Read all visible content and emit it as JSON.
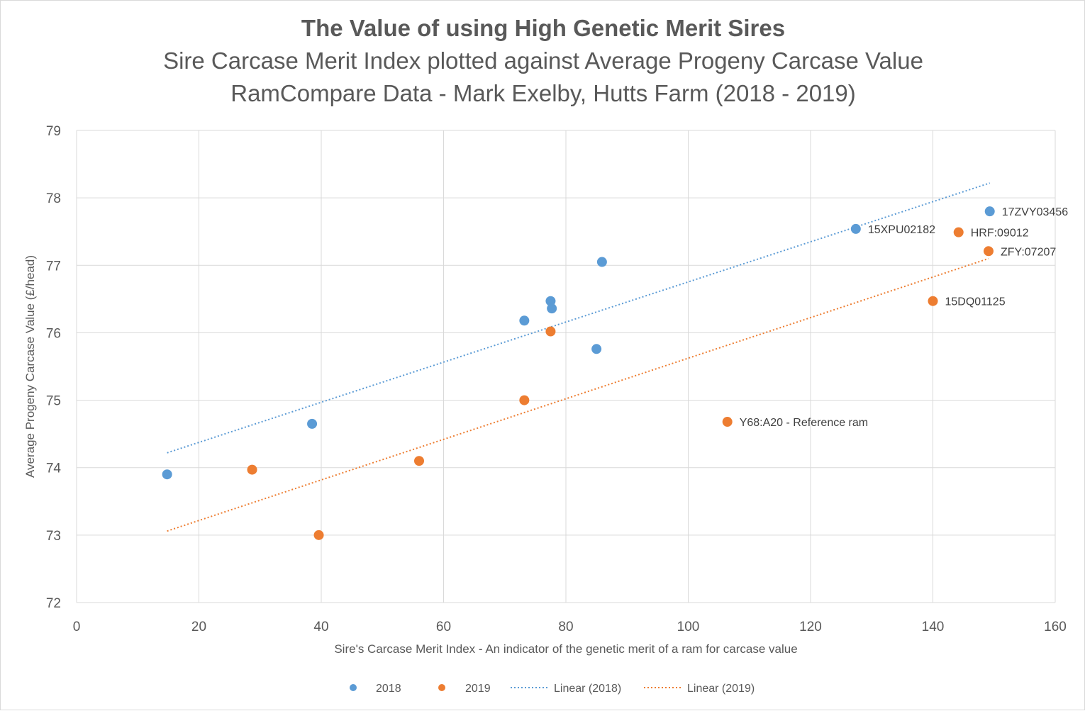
{
  "colors": {
    "s2018": "#5b9bd5",
    "s2019": "#ed7d31",
    "grid": "#d9d9d9",
    "text": "#595959"
  },
  "chart_data": {
    "type": "scatter",
    "title": "The Value of using High Genetic Merit Sires",
    "subtitle": [
      "Sire Carcase Merit Index plotted against Average Progeny Carcase Value",
      "RamCompare Data - Mark Exelby, Hutts Farm (2018 - 2019)"
    ],
    "xlabel": "Sire's Carcase Merit Index - An indicator of the genetic merit of a ram for carcase value",
    "ylabel": "Average Progeny Carcase Value (£/head)",
    "xlim": [
      0,
      160
    ],
    "ylim": [
      72,
      79
    ],
    "xticks": [
      0,
      20,
      40,
      60,
      80,
      100,
      120,
      140,
      160
    ],
    "yticks": [
      72,
      73,
      74,
      75,
      76,
      77,
      78,
      79
    ],
    "grid": true,
    "legend_position": "bottom",
    "series": [
      {
        "name": "2018",
        "color": "#5b9bd5",
        "points": [
          {
            "x": 14.8,
            "y": 73.9,
            "label": ""
          },
          {
            "x": 38.5,
            "y": 74.65,
            "label": ""
          },
          {
            "x": 73.2,
            "y": 76.18,
            "label": ""
          },
          {
            "x": 77.5,
            "y": 76.47,
            "label": ""
          },
          {
            "x": 77.7,
            "y": 76.36,
            "label": ""
          },
          {
            "x": 85.0,
            "y": 75.76,
            "label": ""
          },
          {
            "x": 85.9,
            "y": 77.05,
            "label": ""
          },
          {
            "x": 127.4,
            "y": 77.54,
            "label": "15XPU02182"
          },
          {
            "x": 149.3,
            "y": 77.8,
            "label": "17ZVY03456"
          }
        ]
      },
      {
        "name": "2019",
        "color": "#ed7d31",
        "points": [
          {
            "x": 28.7,
            "y": 73.97,
            "label": ""
          },
          {
            "x": 39.6,
            "y": 73.0,
            "label": ""
          },
          {
            "x": 56.0,
            "y": 74.1,
            "label": ""
          },
          {
            "x": 73.2,
            "y": 75.0,
            "label": ""
          },
          {
            "x": 77.5,
            "y": 76.02,
            "label": ""
          },
          {
            "x": 106.4,
            "y": 74.68,
            "label": "Y68:A20 - Reference ram"
          },
          {
            "x": 140.0,
            "y": 76.47,
            "label": "15DQ01125"
          },
          {
            "x": 144.2,
            "y": 77.49,
            "label": "HRF:09012"
          },
          {
            "x": 149.1,
            "y": 77.21,
            "label": "ZFY:07207"
          }
        ]
      }
    ],
    "trendlines": [
      {
        "name": "Linear (2018)",
        "color": "#5b9bd5",
        "style": "dotted",
        "x_start": 14.8,
        "y_start": 74.22,
        "x_end": 149.3,
        "y_end": 78.22
      },
      {
        "name": "Linear (2019)",
        "color": "#ed7d31",
        "style": "dotted",
        "x_start": 14.8,
        "y_start": 73.06,
        "x_end": 149.1,
        "y_end": 77.1
      }
    ]
  }
}
